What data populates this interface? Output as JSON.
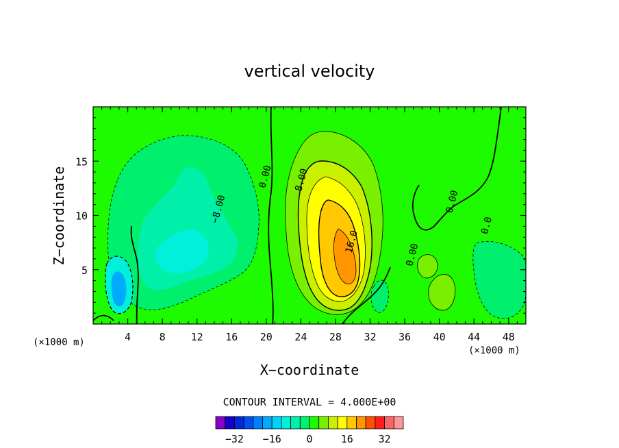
{
  "chart_data": {
    "type": "heatmap",
    "title": "vertical velocity",
    "xlabel": "X−coordinate",
    "ylabel": "Z−coordinate",
    "x_unit_left": "(×1000 m)",
    "x_unit_right": "(×1000 m)",
    "xlim": [
      0,
      50
    ],
    "ylim": [
      0,
      20
    ],
    "x_ticks": [
      4,
      8,
      12,
      16,
      20,
      24,
      28,
      32,
      36,
      40,
      44,
      48
    ],
    "y_ticks": [
      5,
      10,
      15
    ],
    "contour_interval_text": "CONTOUR INTERVAL = 4.000E+00",
    "contour_interval": 4,
    "contour_labels": [
      {
        "text": "0.00",
        "x": 20.2,
        "y": 13.5
      },
      {
        "text": "8.00",
        "x": 24.4,
        "y": 13.2
      },
      {
        "text": "16.0",
        "x": 30.2,
        "y": 7.5
      },
      {
        "text": "−8.00",
        "x": 14.8,
        "y": 10.5
      },
      {
        "text": "0.00",
        "x": 37.2,
        "y": 6.3
      },
      {
        "text": "0.00",
        "x": 41.8,
        "y": 11.2
      },
      {
        "text": "0.0",
        "x": 45.8,
        "y": 9.0
      }
    ],
    "colorbar": {
      "levels": [
        -36,
        -32,
        -28,
        -24,
        -20,
        -16,
        -12,
        -8,
        -4,
        0,
        4,
        8,
        12,
        16,
        20,
        24,
        28,
        32,
        36
      ],
      "colors": [
        "#8a00c8",
        "#1400c8",
        "#0028dc",
        "#0050f0",
        "#0082ff",
        "#00aaff",
        "#00d2ff",
        "#00f0dc",
        "#00f0aa",
        "#00f06e",
        "#1efa00",
        "#78f000",
        "#c8f000",
        "#ffff00",
        "#ffc800",
        "#ff9600",
        "#ff5000",
        "#ff1e1e",
        "#ff6464",
        "#ff9696"
      ],
      "tick_labels": [
        "−32",
        "−16",
        "0",
        "16",
        "32"
      ],
      "tick_values": [
        -32,
        -16,
        0,
        16,
        32
      ]
    },
    "grid": false,
    "legend": "bottom-center"
  }
}
